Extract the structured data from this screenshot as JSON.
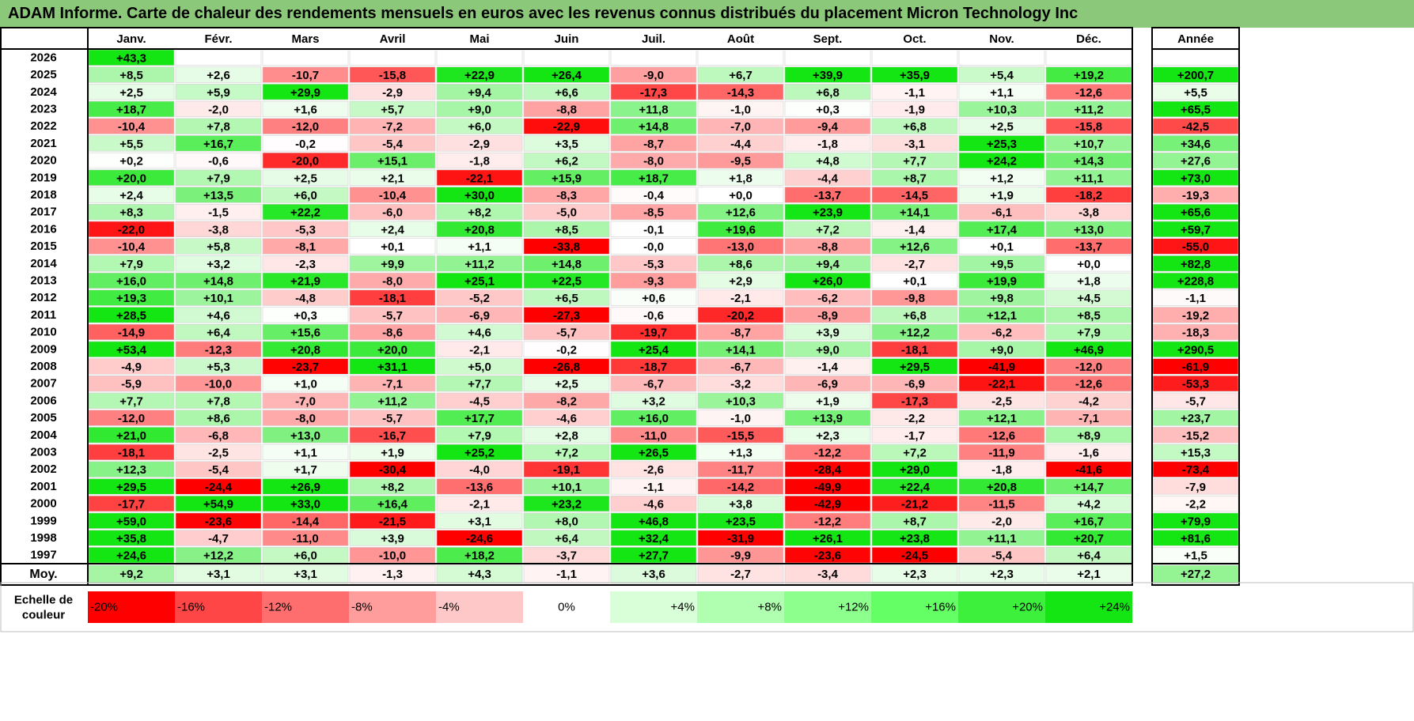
{
  "title": "ADAM Informe. Carte de chaleur des rendements mensuels en euros avec les revenus connus distribués du placement Micron Technology Inc",
  "chart_data": {
    "type": "heatmap",
    "title": "ADAM Informe. Carte de chaleur des rendements mensuels en euros avec les revenus connus distribués du placement Micron Technology Inc",
    "months": [
      "Janv.",
      "Févr.",
      "Mars",
      "Avril",
      "Mai",
      "Juin",
      "Juil.",
      "Août",
      "Sept.",
      "Oct.",
      "Nov.",
      "Déc."
    ],
    "year_header": "Année",
    "rows": [
      {
        "year": "2026",
        "months": [
          "+43,3",
          "",
          "",
          "",
          "",
          "",
          "",
          "",
          "",
          "",
          "",
          ""
        ],
        "annual": ""
      },
      {
        "year": "2025",
        "months": [
          "+8,5",
          "+2,6",
          "-10,7",
          "-15,8",
          "+22,9",
          "+26,4",
          "-9,0",
          "+6,7",
          "+39,9",
          "+35,9",
          "+5,4",
          "+19,2"
        ],
        "annual": "+200,7"
      },
      {
        "year": "2024",
        "months": [
          "+2,5",
          "+5,9",
          "+29,9",
          "-2,9",
          "+9,4",
          "+6,6",
          "-17,3",
          "-14,3",
          "+6,8",
          "-1,1",
          "+1,1",
          "-12,6"
        ],
        "annual": "+5,5"
      },
      {
        "year": "2023",
        "months": [
          "+18,7",
          "-2,0",
          "+1,6",
          "+5,7",
          "+9,0",
          "-8,8",
          "+11,8",
          "-1,0",
          "+0,3",
          "-1,9",
          "+10,3",
          "+11,2"
        ],
        "annual": "+65,5"
      },
      {
        "year": "2022",
        "months": [
          "-10,4",
          "+7,8",
          "-12,0",
          "-7,2",
          "+6,0",
          "-22,9",
          "+14,8",
          "-7,0",
          "-9,4",
          "+6,8",
          "+2,5",
          "-15,8"
        ],
        "annual": "-42,5"
      },
      {
        "year": "2021",
        "months": [
          "+5,5",
          "+16,7",
          "-0,2",
          "-5,4",
          "-2,9",
          "+3,5",
          "-8,7",
          "-4,4",
          "-1,8",
          "-3,1",
          "+25,3",
          "+10,7"
        ],
        "annual": "+34,6"
      },
      {
        "year": "2020",
        "months": [
          "+0,2",
          "-0,6",
          "-20,0",
          "+15,1",
          "-1,8",
          "+6,2",
          "-8,0",
          "-9,5",
          "+4,8",
          "+7,7",
          "+24,2",
          "+14,3"
        ],
        "annual": "+27,6"
      },
      {
        "year": "2019",
        "months": [
          "+20,0",
          "+7,9",
          "+2,5",
          "+2,1",
          "-22,1",
          "+15,9",
          "+18,7",
          "+1,8",
          "-4,4",
          "+8,7",
          "+1,2",
          "+11,1"
        ],
        "annual": "+73,0"
      },
      {
        "year": "2018",
        "months": [
          "+2,4",
          "+13,5",
          "+6,0",
          "-10,4",
          "+30,0",
          "-8,3",
          "-0,4",
          "+0,0",
          "-13,7",
          "-14,5",
          "+1,9",
          "-18,2"
        ],
        "annual": "-19,3"
      },
      {
        "year": "2017",
        "months": [
          "+8,3",
          "-1,5",
          "+22,2",
          "-6,0",
          "+8,2",
          "-5,0",
          "-8,5",
          "+12,6",
          "+23,9",
          "+14,1",
          "-6,1",
          "-3,8"
        ],
        "annual": "+65,6"
      },
      {
        "year": "2016",
        "months": [
          "-22,0",
          "-3,8",
          "-5,3",
          "+2,4",
          "+20,8",
          "+8,5",
          "-0,1",
          "+19,6",
          "+7,2",
          "-1,4",
          "+17,4",
          "+13,0"
        ],
        "annual": "+59,7"
      },
      {
        "year": "2015",
        "months": [
          "-10,4",
          "+5,8",
          "-8,1",
          "+0,1",
          "+1,1",
          "-33,8",
          "-0,0",
          "-13,0",
          "-8,8",
          "+12,6",
          "+0,1",
          "-13,7"
        ],
        "annual": "-55,0"
      },
      {
        "year": "2014",
        "months": [
          "+7,9",
          "+3,2",
          "-2,3",
          "+9,9",
          "+11,2",
          "+14,8",
          "-5,3",
          "+8,6",
          "+9,4",
          "-2,7",
          "+9,5",
          "+0,0"
        ],
        "annual": "+82,8"
      },
      {
        "year": "2013",
        "months": [
          "+16,0",
          "+14,8",
          "+21,9",
          "-8,0",
          "+25,1",
          "+22,5",
          "-9,3",
          "+2,9",
          "+26,0",
          "+0,1",
          "+19,9",
          "+1,8"
        ],
        "annual": "+228,8"
      },
      {
        "year": "2012",
        "months": [
          "+19,3",
          "+10,1",
          "-4,8",
          "-18,1",
          "-5,2",
          "+6,5",
          "+0,6",
          "-2,1",
          "-6,2",
          "-9,8",
          "+9,8",
          "+4,5"
        ],
        "annual": "-1,1"
      },
      {
        "year": "2011",
        "months": [
          "+28,5",
          "+4,6",
          "+0,3",
          "-5,7",
          "-6,9",
          "-27,3",
          "-0,6",
          "-20,2",
          "-8,9",
          "+6,8",
          "+12,1",
          "+8,5"
        ],
        "annual": "-19,2"
      },
      {
        "year": "2010",
        "months": [
          "-14,9",
          "+6,4",
          "+15,6",
          "-8,6",
          "+4,6",
          "-5,7",
          "-19,7",
          "-8,7",
          "+3,9",
          "+12,2",
          "-6,2",
          "+7,9"
        ],
        "annual": "-18,3"
      },
      {
        "year": "2009",
        "months": [
          "+53,4",
          "-12,3",
          "+20,8",
          "+20,0",
          "-2,1",
          "-0,2",
          "+25,4",
          "+14,1",
          "+9,0",
          "-18,1",
          "+9,0",
          "+46,9"
        ],
        "annual": "+290,5"
      },
      {
        "year": "2008",
        "months": [
          "-4,9",
          "+5,3",
          "-23,7",
          "+31,1",
          "+5,0",
          "-26,8",
          "-18,7",
          "-6,7",
          "-1,4",
          "+29,5",
          "-41,9",
          "-12,0"
        ],
        "annual": "-61,9"
      },
      {
        "year": "2007",
        "months": [
          "-5,9",
          "-10,0",
          "+1,0",
          "-7,1",
          "+7,7",
          "+2,5",
          "-6,7",
          "-3,2",
          "-6,9",
          "-6,9",
          "-22,1",
          "-12,6"
        ],
        "annual": "-53,3"
      },
      {
        "year": "2006",
        "months": [
          "+7,7",
          "+7,8",
          "-7,0",
          "+11,2",
          "-4,5",
          "-8,2",
          "+3,2",
          "+10,3",
          "+1,9",
          "-17,3",
          "-2,5",
          "-4,2"
        ],
        "annual": "-5,7"
      },
      {
        "year": "2005",
        "months": [
          "-12,0",
          "+8,6",
          "-8,0",
          "-5,7",
          "+17,7",
          "-4,6",
          "+16,0",
          "-1,0",
          "+13,9",
          "-2,2",
          "+12,1",
          "-7,1"
        ],
        "annual": "+23,7"
      },
      {
        "year": "2004",
        "months": [
          "+21,0",
          "-6,8",
          "+13,0",
          "-16,7",
          "+7,9",
          "+2,8",
          "-11,0",
          "-15,5",
          "+2,3",
          "-1,7",
          "-12,6",
          "+8,9"
        ],
        "annual": "-15,2"
      },
      {
        "year": "2003",
        "months": [
          "-18,1",
          "-2,5",
          "+1,1",
          "+1,9",
          "+25,2",
          "+7,2",
          "+26,5",
          "+1,3",
          "-12,2",
          "+7,2",
          "-11,9",
          "-1,6"
        ],
        "annual": "+15,3"
      },
      {
        "year": "2002",
        "months": [
          "+12,3",
          "-5,4",
          "+1,7",
          "-30,4",
          "-4,0",
          "-19,1",
          "-2,6",
          "-11,7",
          "-28,4",
          "+29,0",
          "-1,8",
          "-41,6"
        ],
        "annual": "-73,4"
      },
      {
        "year": "2001",
        "months": [
          "+29,5",
          "-24,4",
          "+26,9",
          "+8,2",
          "-13,6",
          "+10,1",
          "-1,1",
          "-14,2",
          "-49,9",
          "+22,4",
          "+20,8",
          "+14,7"
        ],
        "annual": "-7,9"
      },
      {
        "year": "2000",
        "months": [
          "-17,7",
          "+54,9",
          "+33,0",
          "+16,4",
          "-2,1",
          "+23,2",
          "-4,6",
          "+3,8",
          "-42,9",
          "-21,2",
          "-11,5",
          "+4,2"
        ],
        "annual": "-2,2"
      },
      {
        "year": "1999",
        "months": [
          "+59,0",
          "-23,6",
          "-14,4",
          "-21,5",
          "+3,1",
          "+8,0",
          "+46,8",
          "+23,5",
          "-12,2",
          "+8,7",
          "-2,0",
          "+16,7"
        ],
        "annual": "+79,9"
      },
      {
        "year": "1998",
        "months": [
          "+35,8",
          "-4,7",
          "-11,0",
          "+3,9",
          "-24,6",
          "+6,4",
          "+32,4",
          "-31,9",
          "+26,1",
          "+23,8",
          "+11,1",
          "+20,7"
        ],
        "annual": "+81,6"
      },
      {
        "year": "1997",
        "months": [
          "+24,6",
          "+12,2",
          "+6,0",
          "-10,0",
          "+18,2",
          "-3,7",
          "+27,7",
          "-9,9",
          "-23,6",
          "-24,5",
          "-5,4",
          "+6,4"
        ],
        "annual": "+1,5"
      }
    ],
    "average": {
      "label": "Moy.",
      "months": [
        "+9,2",
        "+3,1",
        "+3,1",
        "-1,3",
        "+4,3",
        "-1,1",
        "+3,6",
        "-2,7",
        "-3,4",
        "+2,3",
        "+2,3",
        "+2,1"
      ],
      "annual": "+27,2"
    },
    "scale": {
      "label_line1": "Echelle de",
      "label_line2": "couleur",
      "stops": [
        "-20%",
        "-16%",
        "-12%",
        "-8%",
        "-4%",
        "0%",
        "+4%",
        "+8%",
        "+12%",
        "+16%",
        "+20%",
        "+24%"
      ],
      "colors": [
        "#ff0000",
        "#ff4646",
        "#ff6e6e",
        "#ff9c9c",
        "#ffc8c8",
        "#ffffff",
        "#d8ffd8",
        "#b0ffb0",
        "#8cff8c",
        "#64ff64",
        "#3cf03c",
        "#14e614"
      ]
    },
    "colors": {
      "title_band": "#8cc87a",
      "text": "#000000",
      "grid_border": "#000000"
    }
  }
}
